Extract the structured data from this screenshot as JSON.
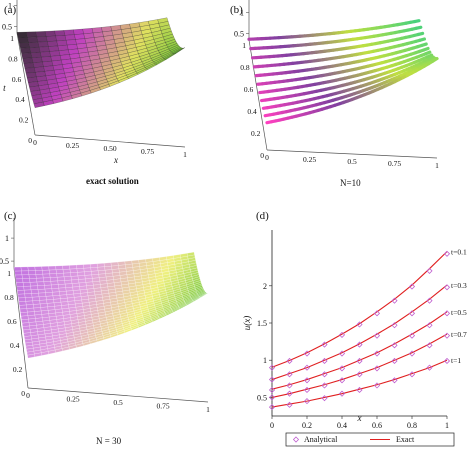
{
  "panels": {
    "a": {
      "label": "(a)",
      "caption": "exact solution"
    },
    "b": {
      "label": "(b)",
      "caption": "N=10"
    },
    "c": {
      "label": "(c)",
      "caption": "N = 30"
    },
    "d": {
      "label": "(d)"
    }
  },
  "colors": {
    "exact_line": "#e02020",
    "analytical_marker": "#c060d0"
  },
  "chart_data": [
    {
      "type": "surface",
      "panel": "a",
      "caption": "exact solution",
      "zlabel": "u",
      "xlabel": "x",
      "ylabel": "t",
      "x_ticks": [
        "0",
        "0.25",
        "0.50",
        "0.75",
        "1"
      ],
      "t_ticks": [
        "1",
        "0.8",
        "0.6",
        "0.4",
        "0.2",
        "0"
      ],
      "z_ticks": [
        "0.5",
        "1",
        "1.5",
        "2",
        "2.5"
      ],
      "grid_x": [
        0,
        0.1,
        0.2,
        0.3,
        0.4,
        0.5,
        0.6,
        0.7,
        0.8,
        0.9,
        1
      ],
      "grid_t": [
        0,
        0.1,
        0.2,
        0.3,
        0.4,
        0.5,
        0.6,
        0.7,
        0.8,
        0.9,
        1
      ],
      "colormap": [
        "#2a2a2a",
        "#c040c0",
        "#e0e060",
        "#60c030"
      ]
    },
    {
      "type": "surface",
      "panel": "b",
      "caption": "N=10",
      "x_ticks": [
        "0",
        "0.25",
        "0.5",
        "0.75",
        "1"
      ],
      "t_ticks": [
        "1",
        "0.8",
        "0.6",
        "0.4",
        "0.2",
        "0"
      ],
      "z_ticks": [
        "0.5",
        "1",
        "1.5",
        "2",
        "2.5"
      ],
      "t_lines": [
        0,
        0.1,
        0.2,
        0.3,
        0.4,
        0.5,
        0.6,
        0.7,
        0.8,
        0.9,
        1
      ],
      "colormap": [
        "#ff40c0",
        "#8040a0",
        "#c0e040",
        "#40d080"
      ]
    },
    {
      "type": "surface",
      "panel": "c",
      "caption": "N = 30",
      "x_ticks": [
        "0",
        "0.25",
        "0.5",
        "0.75",
        "1"
      ],
      "t_ticks": [
        "1",
        "0.8",
        "0.6",
        "0.4",
        "0.2",
        "0"
      ],
      "z_ticks": [
        "0.5",
        "1",
        "1.5",
        "2",
        "2.5"
      ],
      "colormap": [
        "#c070e0",
        "#e0a0e0",
        "#f0f080",
        "#60c030"
      ]
    },
    {
      "type": "line",
      "panel": "d",
      "xlabel": "x",
      "ylabel": "u(x)",
      "xlim": [
        0,
        1
      ],
      "ylim": [
        0.25,
        2.75
      ],
      "x_ticks": [
        "0",
        "0.2",
        "0.4",
        "0.6",
        "0.8",
        "1"
      ],
      "y_ticks": [
        "0.5",
        "1",
        "1.5",
        "2"
      ],
      "legend": {
        "position": "bottom",
        "entries": [
          "Analytical",
          "Exact"
        ]
      },
      "x": [
        0,
        0.1,
        0.2,
        0.3,
        0.4,
        0.5,
        0.6,
        0.7,
        0.8,
        0.9,
        1
      ],
      "series": [
        {
          "name": "t=0.1",
          "exact": [
            0.905,
            0.996,
            1.1,
            1.22,
            1.35,
            1.49,
            1.65,
            1.82,
            2.01,
            2.23,
            2.46
          ],
          "analytical": [
            0.9,
            0.99,
            1.09,
            1.21,
            1.34,
            1.48,
            1.63,
            1.8,
            1.99,
            2.2,
            2.43
          ]
        },
        {
          "name": "t=0.3",
          "exact": [
            0.74,
            0.82,
            0.9,
            1.0,
            1.1,
            1.22,
            1.35,
            1.49,
            1.65,
            1.82,
            2.01
          ],
          "analytical": [
            0.74,
            0.81,
            0.9,
            0.99,
            1.09,
            1.21,
            1.33,
            1.47,
            1.63,
            1.8,
            1.98
          ]
        },
        {
          "name": "t=0.5",
          "exact": [
            0.61,
            0.67,
            0.74,
            0.82,
            0.9,
            1.0,
            1.1,
            1.22,
            1.35,
            1.49,
            1.65
          ],
          "analytical": [
            0.6,
            0.66,
            0.73,
            0.81,
            0.89,
            0.99,
            1.09,
            1.2,
            1.33,
            1.47,
            1.63
          ]
        },
        {
          "name": "t=0.7",
          "exact": [
            0.5,
            0.55,
            0.61,
            0.67,
            0.74,
            0.82,
            0.9,
            1.0,
            1.1,
            1.22,
            1.35
          ],
          "analytical": [
            0.5,
            0.55,
            0.6,
            0.66,
            0.73,
            0.81,
            0.89,
            0.99,
            1.09,
            1.2,
            1.33
          ]
        },
        {
          "name": "t=1",
          "exact": [
            0.37,
            0.41,
            0.45,
            0.5,
            0.55,
            0.61,
            0.67,
            0.74,
            0.82,
            0.9,
            1.0
          ],
          "analytical": [
            0.37,
            0.4,
            0.45,
            0.49,
            0.55,
            0.6,
            0.66,
            0.73,
            0.81,
            0.9,
            0.99
          ]
        }
      ]
    }
  ]
}
